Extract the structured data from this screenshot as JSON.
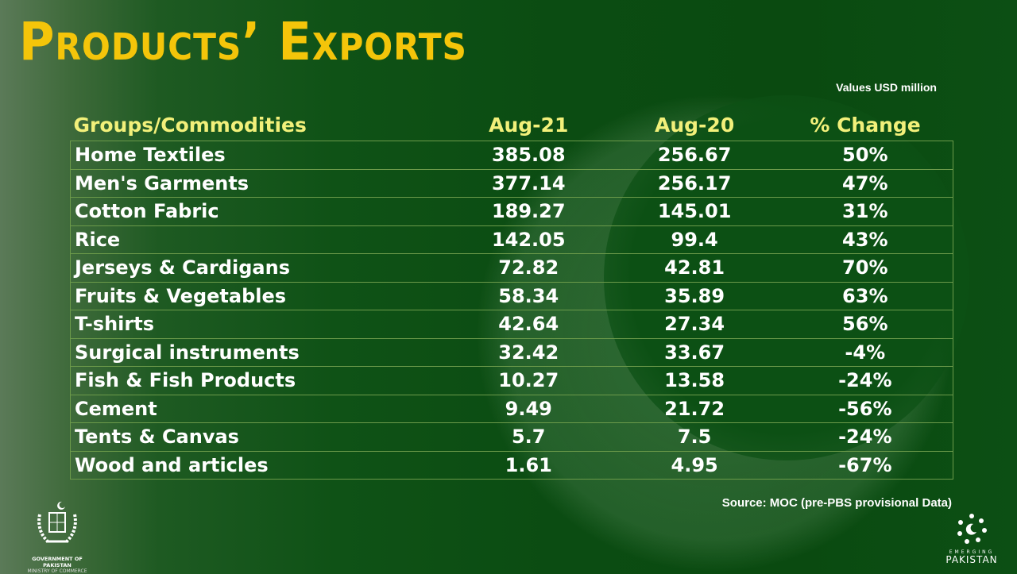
{
  "title": "Products’ Exports",
  "units_note": "Values USD million",
  "source": "Source: MOC (pre-PBS provisional Data)",
  "logos": {
    "government_line1": "GOVERNMENT OF PAKISTAN",
    "government_line2": "MINISTRY OF COMMERCE",
    "emerging_line1": "EMERGING",
    "emerging_line2": "PAKISTAN"
  },
  "colors": {
    "title": "#f4c50a",
    "header": "#f2f07a",
    "background": "#0b4c12",
    "grid": "#6c9a4a"
  },
  "chart_data": {
    "type": "table",
    "columns": [
      "Groups/Commodities",
      "Aug-21",
      "Aug-20",
      "% Change"
    ],
    "rows": [
      [
        "Home Textiles",
        "385.08",
        "256.67",
        "50%"
      ],
      [
        "Men's Garments",
        "377.14",
        "256.17",
        "47%"
      ],
      [
        "Cotton Fabric",
        "189.27",
        "145.01",
        "31%"
      ],
      [
        "Rice",
        "142.05",
        "99.4",
        "43%"
      ],
      [
        "Jerseys & Cardigans",
        "72.82",
        "42.81",
        "70%"
      ],
      [
        "Fruits & Vegetables",
        "58.34",
        "35.89",
        "63%"
      ],
      [
        "T-shirts",
        "42.64",
        "27.34",
        "56%"
      ],
      [
        "Surgical instruments",
        "32.42",
        "33.67",
        "-4%"
      ],
      [
        "Fish & Fish Products",
        "10.27",
        "13.58",
        "-24%"
      ],
      [
        "Cement",
        "9.49",
        "21.72",
        "-56%"
      ],
      [
        "Tents & Canvas",
        "5.7",
        "7.5",
        "-24%"
      ],
      [
        "Wood and articles",
        "1.61",
        "4.95",
        "-67%"
      ]
    ]
  }
}
